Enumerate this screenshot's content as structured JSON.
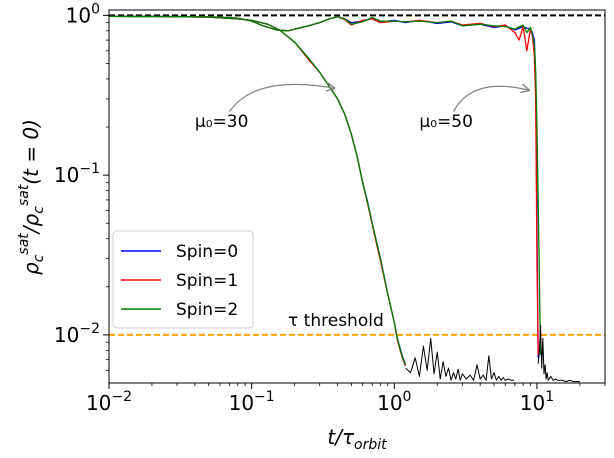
{
  "chart_data": {
    "type": "line",
    "title": "",
    "xlabel": "t/τ_orbit",
    "ylabel": "ρ_c^sat/ρ_c^sat(t=0)",
    "xscale": "log",
    "yscale": "log",
    "xlim": [
      0.01,
      30
    ],
    "ylim": [
      0.005,
      1.08
    ],
    "xticks": [
      {
        "value": 0.01,
        "mantissa": "10",
        "exponent": "−2"
      },
      {
        "value": 0.1,
        "mantissa": "10",
        "exponent": "−1"
      },
      {
        "value": 1,
        "mantissa": "10",
        "exponent": "0"
      },
      {
        "value": 10,
        "mantissa": "10",
        "exponent": "1"
      }
    ],
    "yticks": [
      {
        "value": 0.01,
        "mantissa": "10",
        "exponent": "−2"
      },
      {
        "value": 0.1,
        "mantissa": "10",
        "exponent": "−1"
      },
      {
        "value": 1,
        "mantissa": "10",
        "exponent": "0"
      }
    ],
    "legend": {
      "position": "lower-left",
      "entries": [
        {
          "label": "Spin=0",
          "color": "#0000ff"
        },
        {
          "label": "Spin=1",
          "color": "#ff0000"
        },
        {
          "label": "Spin=2",
          "color": "#008000"
        }
      ]
    },
    "reference_lines": [
      {
        "name": "unity",
        "y": 1.0,
        "color": "#000000",
        "style": "dashed"
      },
      {
        "name": "tau-threshold",
        "y": 0.01,
        "color": "#ffa500",
        "style": "dashed",
        "label": "τ threshold",
        "label_x": 0.18
      }
    ],
    "annotations": [
      {
        "name": "mu-30",
        "text": "μ₀=30",
        "text_x": 0.04,
        "text_y": 0.2,
        "arrow_from": [
          0.07,
          0.25
        ],
        "arrow_to": [
          0.38,
          0.35
        ]
      },
      {
        "name": "mu-50",
        "text": "μ₀=50",
        "text_x": 1.5,
        "text_y": 0.2,
        "arrow_from": [
          2.6,
          0.25
        ],
        "arrow_to": [
          8.8,
          0.34
        ]
      }
    ],
    "series": [
      {
        "name": "Spin=0 μ₀=30",
        "color": "#0000ff",
        "x": [
          0.01,
          0.02,
          0.05,
          0.08,
          0.1,
          0.13,
          0.16,
          0.2,
          0.25,
          0.3,
          0.35,
          0.4,
          0.45,
          0.5,
          0.55,
          0.6,
          0.65,
          0.7,
          0.8,
          0.9,
          1.0,
          1.05,
          1.1,
          1.15,
          1.2
        ],
        "y": [
          0.985,
          0.983,
          0.975,
          0.95,
          0.93,
          0.88,
          0.8,
          0.68,
          0.54,
          0.44,
          0.36,
          0.3,
          0.24,
          0.18,
          0.13,
          0.09,
          0.068,
          0.05,
          0.03,
          0.018,
          0.012,
          0.0095,
          0.0082,
          0.0072,
          0.0065
        ]
      },
      {
        "name": "Spin=1 μ₀=30",
        "color": "#ff0000",
        "x": [
          0.01,
          0.02,
          0.05,
          0.08,
          0.1,
          0.13,
          0.16,
          0.2,
          0.25,
          0.3,
          0.35,
          0.4,
          0.45,
          0.5,
          0.55,
          0.6,
          0.65,
          0.7,
          0.8,
          0.9,
          1.0,
          1.05,
          1.1,
          1.15,
          1.2
        ],
        "y": [
          0.985,
          0.983,
          0.975,
          0.95,
          0.93,
          0.88,
          0.8,
          0.68,
          0.53,
          0.44,
          0.36,
          0.3,
          0.24,
          0.18,
          0.13,
          0.09,
          0.066,
          0.049,
          0.029,
          0.018,
          0.012,
          0.0093,
          0.008,
          0.007,
          0.0064
        ]
      },
      {
        "name": "Spin=2 μ₀=30",
        "color": "#008000",
        "x": [
          0.01,
          0.02,
          0.05,
          0.08,
          0.1,
          0.13,
          0.16,
          0.2,
          0.25,
          0.3,
          0.35,
          0.4,
          0.45,
          0.5,
          0.55,
          0.6,
          0.65,
          0.7,
          0.8,
          0.9,
          1.0,
          1.05,
          1.1,
          1.15,
          1.2
        ],
        "y": [
          0.985,
          0.983,
          0.975,
          0.95,
          0.93,
          0.88,
          0.8,
          0.68,
          0.54,
          0.44,
          0.36,
          0.3,
          0.24,
          0.18,
          0.13,
          0.09,
          0.067,
          0.05,
          0.03,
          0.018,
          0.012,
          0.0095,
          0.0081,
          0.0071,
          0.0065
        ]
      },
      {
        "name": "Spin=0 μ₀=50",
        "color": "#0000ff",
        "x": [
          0.01,
          0.02,
          0.05,
          0.08,
          0.1,
          0.12,
          0.15,
          0.18,
          0.2,
          0.25,
          0.3,
          0.35,
          0.4,
          0.45,
          0.5,
          0.6,
          0.7,
          0.8,
          1.0,
          1.2,
          1.5,
          2.0,
          2.5,
          3.0,
          4.0,
          5.0,
          6.0,
          7.0,
          8.0,
          8.5,
          9.0,
          9.3,
          9.6,
          9.8,
          10.0,
          10.2
        ],
        "y": [
          0.985,
          0.985,
          0.98,
          0.96,
          0.92,
          0.86,
          0.81,
          0.8,
          0.82,
          0.86,
          0.9,
          0.95,
          0.98,
          0.95,
          0.9,
          0.92,
          0.96,
          0.91,
          0.93,
          0.9,
          0.93,
          0.89,
          0.91,
          0.86,
          0.88,
          0.84,
          0.86,
          0.81,
          0.85,
          0.83,
          0.82,
          0.78,
          0.7,
          0.4,
          0.05,
          0.0072
        ]
      },
      {
        "name": "Spin=1 μ₀=50",
        "color": "#ff0000",
        "x": [
          0.01,
          0.02,
          0.05,
          0.08,
          0.1,
          0.12,
          0.15,
          0.18,
          0.2,
          0.25,
          0.3,
          0.35,
          0.4,
          0.45,
          0.5,
          0.6,
          0.7,
          0.8,
          1.0,
          1.2,
          1.5,
          2.0,
          2.5,
          3.0,
          4.0,
          5.0,
          6.0,
          7.0,
          7.5,
          8.0,
          8.5,
          9.0,
          9.3,
          9.6,
          9.8,
          10.0,
          10.2
        ],
        "y": [
          0.985,
          0.985,
          0.98,
          0.96,
          0.92,
          0.86,
          0.81,
          0.8,
          0.82,
          0.86,
          0.9,
          0.95,
          0.98,
          0.94,
          0.87,
          0.93,
          0.95,
          0.9,
          0.92,
          0.91,
          0.93,
          0.9,
          0.92,
          0.87,
          0.89,
          0.85,
          0.87,
          0.78,
          0.7,
          0.85,
          0.6,
          0.82,
          0.74,
          0.55,
          0.3,
          0.03,
          0.0075
        ]
      },
      {
        "name": "Spin=2 μ₀=50",
        "color": "#008000",
        "x": [
          0.01,
          0.02,
          0.05,
          0.08,
          0.1,
          0.12,
          0.15,
          0.18,
          0.2,
          0.25,
          0.3,
          0.35,
          0.4,
          0.45,
          0.5,
          0.6,
          0.7,
          0.8,
          1.0,
          1.2,
          1.5,
          2.0,
          2.5,
          3.0,
          4.0,
          5.0,
          6.0,
          7.0,
          8.0,
          8.5,
          9.0,
          9.3,
          9.6,
          9.8,
          10.0,
          10.3,
          10.6
        ],
        "y": [
          0.985,
          0.985,
          0.98,
          0.96,
          0.92,
          0.86,
          0.81,
          0.8,
          0.82,
          0.86,
          0.9,
          0.95,
          0.98,
          0.95,
          0.88,
          0.91,
          0.97,
          0.92,
          0.92,
          0.91,
          0.92,
          0.9,
          0.92,
          0.86,
          0.88,
          0.86,
          0.85,
          0.82,
          0.87,
          0.78,
          0.84,
          0.76,
          0.65,
          0.45,
          0.2,
          0.04,
          0.0075
        ]
      },
      {
        "name": "threshold noise μ₀=30",
        "color": "#000000",
        "x": [
          1.2,
          1.3,
          1.4,
          1.5,
          1.6,
          1.7,
          1.8,
          1.9,
          2.0,
          2.1,
          2.2,
          2.3,
          2.4,
          2.5,
          2.6,
          2.7,
          2.8,
          2.9,
          3.0,
          3.2,
          3.4,
          3.6,
          3.8,
          4.0,
          4.2,
          4.4,
          4.6,
          4.8,
          5.0,
          5.2,
          5.4,
          5.6,
          5.8,
          6.0,
          6.3,
          6.6,
          6.9
        ],
        "y": [
          0.0062,
          0.0058,
          0.0072,
          0.0055,
          0.0085,
          0.006,
          0.0095,
          0.0057,
          0.0078,
          0.0053,
          0.0068,
          0.0055,
          0.0062,
          0.0052,
          0.0058,
          0.0053,
          0.0061,
          0.0052,
          0.0057,
          0.0053,
          0.0056,
          0.0052,
          0.0065,
          0.0053,
          0.0056,
          0.0052,
          0.0074,
          0.0053,
          0.0058,
          0.0052,
          0.0055,
          0.0052,
          0.0054,
          0.0052,
          0.0053,
          0.0052,
          0.0052
        ]
      },
      {
        "name": "threshold noise μ₀=50",
        "color": "#000000",
        "x": [
          10.2,
          10.4,
          10.6,
          10.8,
          11.0,
          11.2,
          11.4,
          11.6,
          11.8,
          12.0,
          12.5,
          13.0,
          13.5,
          14.0,
          15.0,
          16.0,
          17.0,
          18.0,
          19.0,
          20.0
        ],
        "y": [
          0.0066,
          0.0078,
          0.0115,
          0.0062,
          0.0095,
          0.0057,
          0.0065,
          0.0053,
          0.0058,
          0.0052,
          0.0055,
          0.0052,
          0.0053,
          0.0052,
          0.0052,
          0.0051,
          0.0052,
          0.0051,
          0.0051,
          0.0051
        ]
      }
    ]
  }
}
